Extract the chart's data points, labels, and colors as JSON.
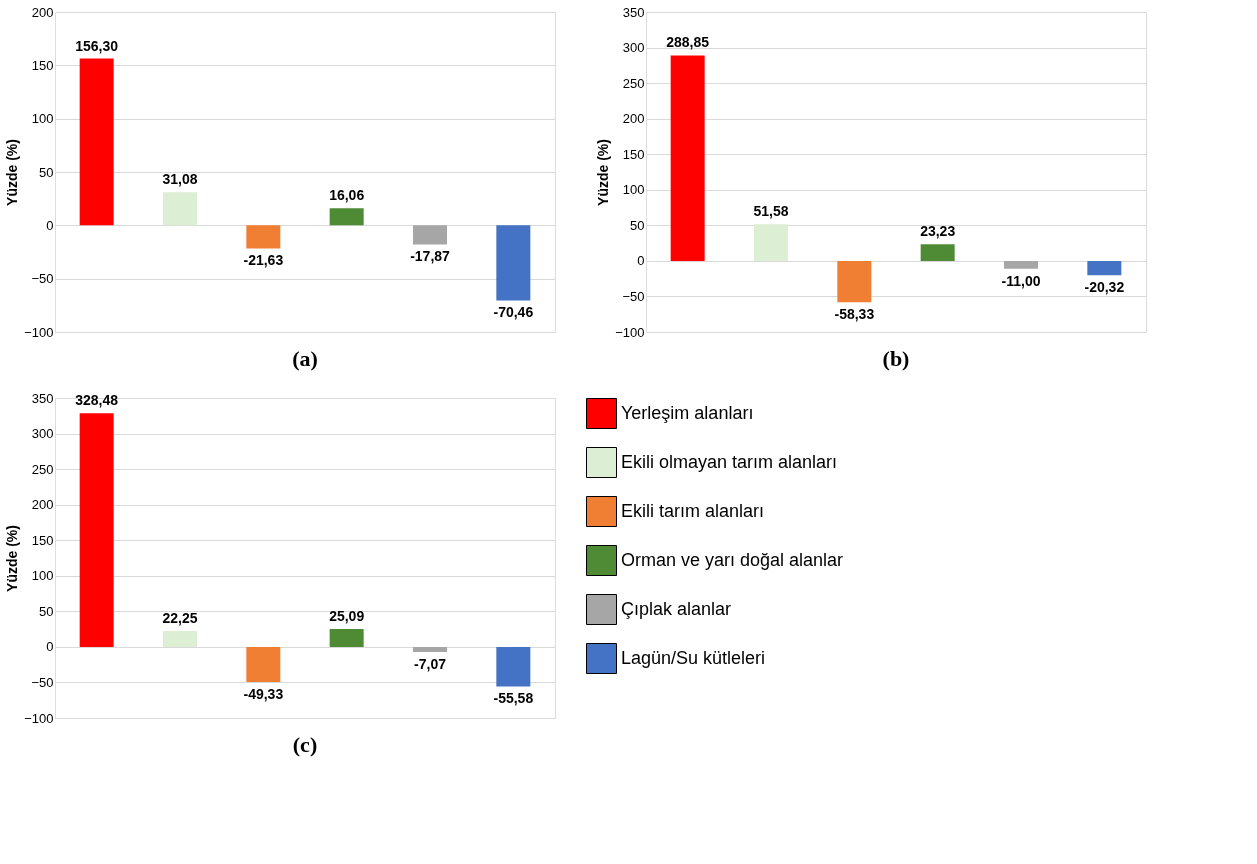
{
  "chart_data": [
    {
      "type": "bar",
      "title": "(a)",
      "ylabel": "Yüzde (%)",
      "categories": [
        null,
        null,
        null,
        null,
        null,
        null
      ],
      "ylim": [
        -100,
        200
      ],
      "yticks": [
        -100,
        -50,
        0,
        50,
        100,
        150,
        200
      ],
      "grid": "y",
      "tick_labels": "y",
      "legend": false,
      "series": [
        {
          "color": "#ff0000",
          "values": [
            156.3,
            null,
            null,
            null,
            null,
            null
          ],
          "value_labels": [
            "156,30",
            null,
            null,
            null,
            null,
            null
          ]
        },
        {
          "color": "#dcefd4",
          "values": [
            null,
            31.08,
            null,
            null,
            null,
            null
          ],
          "value_labels": [
            null,
            "31,08",
            null,
            null,
            null,
            null
          ]
        },
        {
          "color": "#f07f34",
          "values": [
            null,
            null,
            -21.63,
            null,
            null,
            null
          ],
          "value_labels": [
            null,
            null,
            "-21,63",
            null,
            null,
            null
          ]
        },
        {
          "color": "#4f8a35",
          "values": [
            null,
            null,
            null,
            16.06,
            null,
            null
          ],
          "value_labels": [
            null,
            null,
            null,
            "16,06",
            null,
            null
          ]
        },
        {
          "color": "#a6a6a6",
          "values": [
            null,
            null,
            null,
            null,
            -17.87,
            null
          ],
          "value_labels": [
            null,
            null,
            null,
            null,
            "-17,87",
            null
          ]
        },
        {
          "color": "#4472c4",
          "values": [
            null,
            null,
            null,
            null,
            null,
            -70.46
          ],
          "value_labels": [
            null,
            null,
            null,
            null,
            null,
            "-70,46"
          ]
        }
      ]
    },
    {
      "type": "bar",
      "title": "(b)",
      "ylabel": "Yüzde (%)",
      "categories": [
        null,
        null,
        null,
        null,
        null,
        null
      ],
      "ylim": [
        -100,
        350
      ],
      "yticks": [
        -100,
        -50,
        0,
        50,
        100,
        150,
        200,
        250,
        300,
        350
      ],
      "grid": "y",
      "tick_labels": "y",
      "legend": false,
      "series": [
        {
          "color": "#ff0000",
          "values": [
            288.85,
            null,
            null,
            null,
            null,
            null
          ],
          "value_labels": [
            "288,85",
            null,
            null,
            null,
            null,
            null
          ]
        },
        {
          "color": "#dcefd4",
          "values": [
            null,
            51.58,
            null,
            null,
            null,
            null
          ],
          "value_labels": [
            null,
            "51,58",
            null,
            null,
            null,
            null
          ]
        },
        {
          "color": "#f07f34",
          "values": [
            null,
            null,
            -58.33,
            null,
            null,
            null
          ],
          "value_labels": [
            null,
            null,
            "-58,33",
            null,
            null,
            null
          ]
        },
        {
          "color": "#4f8a35",
          "values": [
            null,
            null,
            null,
            23.23,
            null,
            null
          ],
          "value_labels": [
            null,
            null,
            null,
            "23,23",
            null,
            null
          ]
        },
        {
          "color": "#a6a6a6",
          "values": [
            null,
            null,
            null,
            null,
            -11.0,
            null
          ],
          "value_labels": [
            null,
            null,
            null,
            null,
            "-11,00",
            null
          ]
        },
        {
          "color": "#4472c4",
          "values": [
            null,
            null,
            null,
            null,
            null,
            -20.32
          ],
          "value_labels": [
            null,
            null,
            null,
            null,
            null,
            "-20,32"
          ]
        }
      ]
    },
    {
      "type": "bar",
      "title": "(c)",
      "ylabel": "Yüzde (%)",
      "categories": [
        null,
        null,
        null,
        null,
        null,
        null
      ],
      "ylim": [
        -100,
        350
      ],
      "yticks": [
        -100,
        -50,
        0,
        50,
        100,
        150,
        200,
        250,
        300,
        350
      ],
      "grid": "y",
      "tick_labels": "y",
      "legend": "right",
      "series": [
        {
          "name": "Yerleşim alanları",
          "color": "#ff0000",
          "values": [
            328.48,
            null,
            null,
            null,
            null,
            null
          ],
          "value_labels": [
            "328,48",
            null,
            null,
            null,
            null,
            null
          ]
        },
        {
          "name": "Ekili olmayan tarım alanları",
          "color": "#dcefd4",
          "values": [
            null,
            22.25,
            null,
            null,
            null,
            null
          ],
          "value_labels": [
            null,
            "22,25",
            null,
            null,
            null,
            null
          ]
        },
        {
          "name": "Ekili tarım alanları",
          "color": "#f07f34",
          "values": [
            null,
            null,
            -49.33,
            null,
            null,
            null
          ],
          "value_labels": [
            null,
            null,
            "-49,33",
            null,
            null,
            null
          ]
        },
        {
          "name": "Orman ve yarı doğal alanlar",
          "color": "#4f8a35",
          "values": [
            null,
            null,
            null,
            25.09,
            null,
            null
          ],
          "value_labels": [
            null,
            null,
            null,
            "25,09",
            null,
            null
          ]
        },
        {
          "name": "Çıplak alanlar",
          "color": "#a6a6a6",
          "values": [
            null,
            null,
            null,
            null,
            -7.07,
            null
          ],
          "value_labels": [
            null,
            null,
            null,
            null,
            "-7,07",
            null
          ]
        },
        {
          "name": "Lagün/Su kütleleri",
          "color": "#4472c4",
          "values": [
            null,
            null,
            null,
            null,
            null,
            -55.58
          ],
          "value_labels": [
            null,
            null,
            null,
            null,
            null,
            "-55,58"
          ]
        }
      ]
    }
  ]
}
